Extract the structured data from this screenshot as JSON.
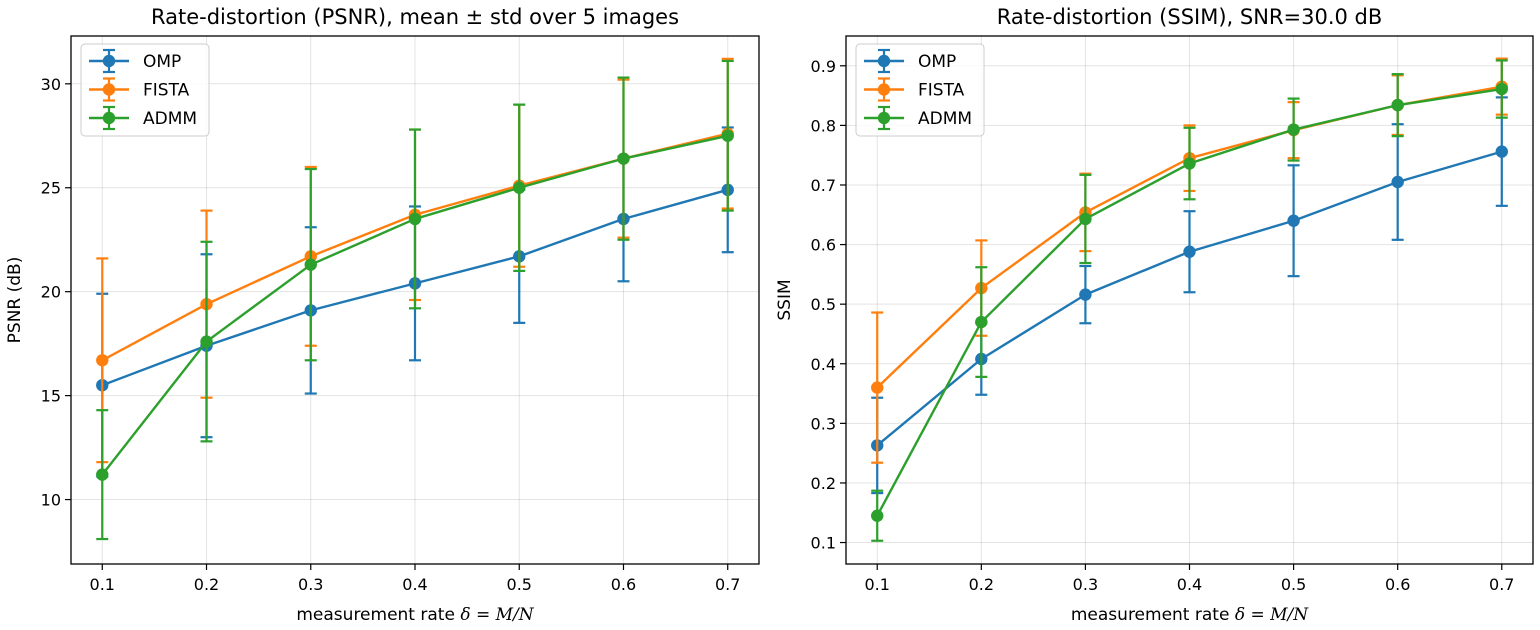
{
  "chart_data": [
    {
      "type": "line",
      "title": "Rate-distortion (PSNR), mean ± std over 5 images",
      "xlabel": "measurement rate δ = M/N",
      "xlabel_prefix": "measurement rate ",
      "xlabel_math": "δ = M/N",
      "ylabel": "PSNR (dB)",
      "x": [
        0.1,
        0.2,
        0.3,
        0.4,
        0.5,
        0.6,
        0.7
      ],
      "x_tick_labels": [
        "0.1",
        "0.2",
        "0.3",
        "0.4",
        "0.5",
        "0.6",
        "0.7"
      ],
      "xlim": [
        0.07,
        0.73
      ],
      "ylim": [
        6.9,
        32.3
      ],
      "yticks": [
        10,
        15,
        20,
        25,
        30
      ],
      "y_tick_labels": [
        "10",
        "15",
        "20",
        "25",
        "30"
      ],
      "grid": true,
      "legend": "upper left",
      "series": [
        {
          "name": "OMP",
          "color": "#1f77b4",
          "values": [
            15.5,
            17.4,
            19.1,
            20.4,
            21.7,
            23.5,
            24.9
          ],
          "std": [
            4.4,
            4.4,
            4.0,
            3.7,
            3.2,
            3.0,
            3.0
          ]
        },
        {
          "name": "FISTA",
          "color": "#ff7f0e",
          "values": [
            16.7,
            19.4,
            21.7,
            23.7,
            25.1,
            26.4,
            27.6
          ],
          "std": [
            4.9,
            4.5,
            4.3,
            4.1,
            3.9,
            3.8,
            3.6
          ]
        },
        {
          "name": "ADMM",
          "color": "#2ca02c",
          "values": [
            11.2,
            17.6,
            21.3,
            23.5,
            25.0,
            26.4,
            27.5
          ],
          "std": [
            3.1,
            4.8,
            4.6,
            4.3,
            4.0,
            3.9,
            3.6
          ]
        }
      ]
    },
    {
      "type": "line",
      "title": "Rate-distortion (SSIM), SNR=30.0 dB",
      "xlabel": "measurement rate δ = M/N",
      "xlabel_prefix": "measurement rate ",
      "xlabel_math": "δ = M/N",
      "ylabel": "SSIM",
      "x": [
        0.1,
        0.2,
        0.3,
        0.4,
        0.5,
        0.6,
        0.7
      ],
      "x_tick_labels": [
        "0.1",
        "0.2",
        "0.3",
        "0.4",
        "0.5",
        "0.6",
        "0.7"
      ],
      "xlim": [
        0.07,
        0.73
      ],
      "ylim": [
        0.064,
        0.95
      ],
      "yticks": [
        0.1,
        0.2,
        0.3,
        0.4,
        0.5,
        0.6,
        0.7,
        0.8,
        0.9
      ],
      "y_tick_labels": [
        "0.1",
        "0.2",
        "0.3",
        "0.4",
        "0.5",
        "0.6",
        "0.7",
        "0.8",
        "0.9"
      ],
      "grid": true,
      "legend": "upper left",
      "series": [
        {
          "name": "OMP",
          "color": "#1f77b4",
          "values": [
            0.263,
            0.408,
            0.516,
            0.588,
            0.64,
            0.705,
            0.756
          ],
          "std": [
            0.08,
            0.06,
            0.048,
            0.068,
            0.093,
            0.097,
            0.091
          ]
        },
        {
          "name": "FISTA",
          "color": "#ff7f0e",
          "values": [
            0.36,
            0.527,
            0.654,
            0.745,
            0.792,
            0.834,
            0.865
          ],
          "std": [
            0.126,
            0.08,
            0.065,
            0.055,
            0.047,
            0.05,
            0.047
          ]
        },
        {
          "name": "ADMM",
          "color": "#2ca02c",
          "values": [
            0.145,
            0.47,
            0.643,
            0.736,
            0.793,
            0.834,
            0.861
          ],
          "std": [
            0.042,
            0.092,
            0.074,
            0.06,
            0.052,
            0.052,
            0.048
          ]
        }
      ]
    }
  ]
}
